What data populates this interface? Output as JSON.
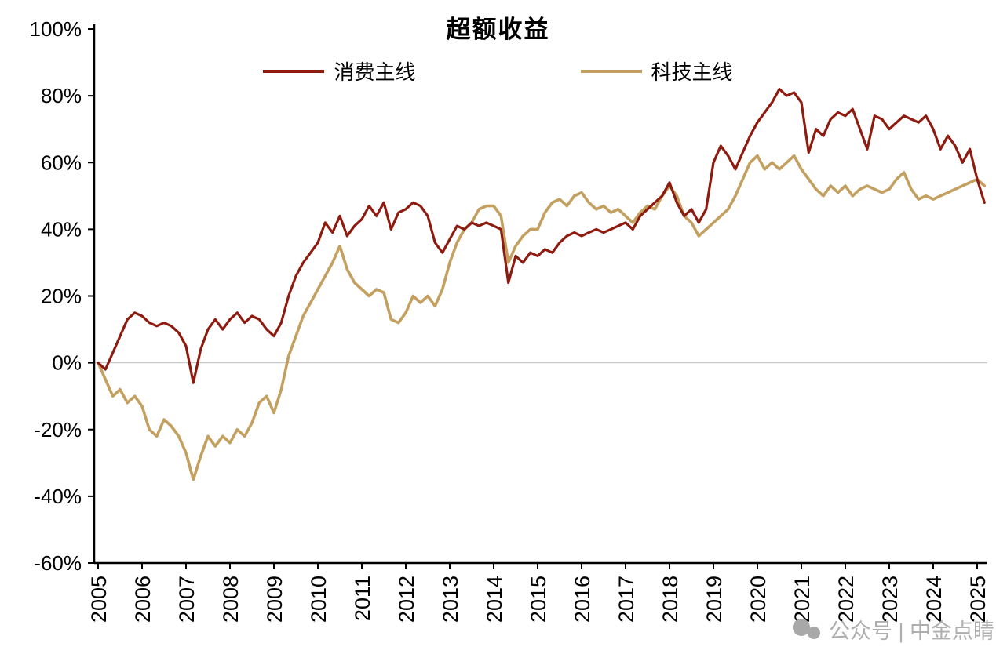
{
  "title": "超额收益",
  "watermark": {
    "text": "公众号 | 中金点睛"
  },
  "colors": {
    "consumer_line": "#8e1b10",
    "tech_line": "#c3a05f",
    "axis": "#000000",
    "zero_line": "#c9c9c9",
    "watermark": "#aeaeae"
  },
  "chart_data": {
    "type": "line",
    "title": "超额收益",
    "xlabel": "",
    "ylabel": "",
    "grid": "zero-line-only",
    "legend_position": "top-center",
    "ylim": [
      -60,
      100
    ],
    "xlim": [
      2005,
      2025.2
    ],
    "y_ticks": [
      {
        "value": 100,
        "label": "100%"
      },
      {
        "value": 80,
        "label": "80%"
      },
      {
        "value": 60,
        "label": "60%"
      },
      {
        "value": 40,
        "label": "40%"
      },
      {
        "value": 20,
        "label": "20%"
      },
      {
        "value": 0,
        "label": "0%"
      },
      {
        "value": -20,
        "label": "-20%"
      },
      {
        "value": -40,
        "label": "-40%"
      },
      {
        "value": -60,
        "label": "-60%"
      }
    ],
    "x_ticks": [
      {
        "value": 2005,
        "label": "2005"
      },
      {
        "value": 2006,
        "label": "2006"
      },
      {
        "value": 2007,
        "label": "2007"
      },
      {
        "value": 2008,
        "label": "2008"
      },
      {
        "value": 2009,
        "label": "2009"
      },
      {
        "value": 2010,
        "label": "2010"
      },
      {
        "value": 2011,
        "label": "2011"
      },
      {
        "value": 2012,
        "label": "2012"
      },
      {
        "value": 2013,
        "label": "2013"
      },
      {
        "value": 2014,
        "label": "2014"
      },
      {
        "value": 2015,
        "label": "2015"
      },
      {
        "value": 2016,
        "label": "2016"
      },
      {
        "value": 2017,
        "label": "2017"
      },
      {
        "value": 2018,
        "label": "2018"
      },
      {
        "value": 2019,
        "label": "2019"
      },
      {
        "value": 2020,
        "label": "2020"
      },
      {
        "value": 2021,
        "label": "2021"
      },
      {
        "value": 2022,
        "label": "2022"
      },
      {
        "value": 2023,
        "label": "2023"
      },
      {
        "value": 2024,
        "label": "2024"
      },
      {
        "value": 2025,
        "label": "2025"
      }
    ],
    "series": [
      {
        "name": "消费主线",
        "data_name": "consumer-line",
        "color": "#8e1b10",
        "width": 3.2,
        "x_start": 2005,
        "x_step": 0.166667,
        "values": [
          0,
          -2,
          3,
          8,
          13,
          15,
          14,
          12,
          11,
          12,
          11,
          9,
          5,
          -6,
          4,
          10,
          13,
          10,
          13,
          15,
          12,
          14,
          13,
          10,
          8,
          12,
          20,
          26,
          30,
          33,
          36,
          42,
          39,
          44,
          38,
          41,
          43,
          47,
          44,
          48,
          40,
          45,
          46,
          48,
          47,
          44,
          36,
          33,
          37,
          41,
          40,
          42,
          41,
          42,
          41,
          40,
          24,
          32,
          30,
          33,
          32,
          34,
          33,
          36,
          38,
          39,
          38,
          39,
          40,
          39,
          40,
          41,
          42,
          40,
          44,
          46,
          48,
          50,
          54,
          48,
          44,
          46,
          42,
          46,
          60,
          65,
          62,
          58,
          63,
          68,
          72,
          75,
          78,
          82,
          80,
          81,
          78,
          63,
          70,
          68,
          73,
          75,
          74,
          76,
          70,
          64,
          74,
          73,
          70,
          72,
          74,
          73,
          72,
          74,
          70,
          64,
          68,
          65,
          60,
          64,
          55,
          48
        ]
      },
      {
        "name": "科技主线",
        "data_name": "tech-line",
        "color": "#c3a05f",
        "width": 3.6,
        "x_start": 2005,
        "x_step": 0.166667,
        "values": [
          0,
          -5,
          -10,
          -8,
          -12,
          -10,
          -13,
          -20,
          -22,
          -17,
          -19,
          -22,
          -27,
          -35,
          -28,
          -22,
          -25,
          -22,
          -24,
          -20,
          -22,
          -18,
          -12,
          -10,
          -15,
          -8,
          2,
          8,
          14,
          18,
          22,
          26,
          30,
          35,
          28,
          24,
          22,
          20,
          22,
          21,
          13,
          12,
          15,
          20,
          18,
          20,
          17,
          22,
          30,
          36,
          40,
          42,
          46,
          47,
          47,
          44,
          30,
          35,
          38,
          40,
          40,
          45,
          48,
          49,
          47,
          50,
          51,
          48,
          46,
          47,
          45,
          46,
          44,
          42,
          45,
          47,
          46,
          50,
          53,
          50,
          44,
          42,
          38,
          40,
          42,
          44,
          46,
          50,
          55,
          60,
          62,
          58,
          60,
          58,
          60,
          62,
          58,
          55,
          52,
          50,
          53,
          51,
          53,
          50,
          52,
          53,
          52,
          51,
          52,
          55,
          57,
          52,
          49,
          50,
          49,
          50,
          51,
          52,
          53,
          54,
          55,
          53
        ]
      }
    ]
  }
}
